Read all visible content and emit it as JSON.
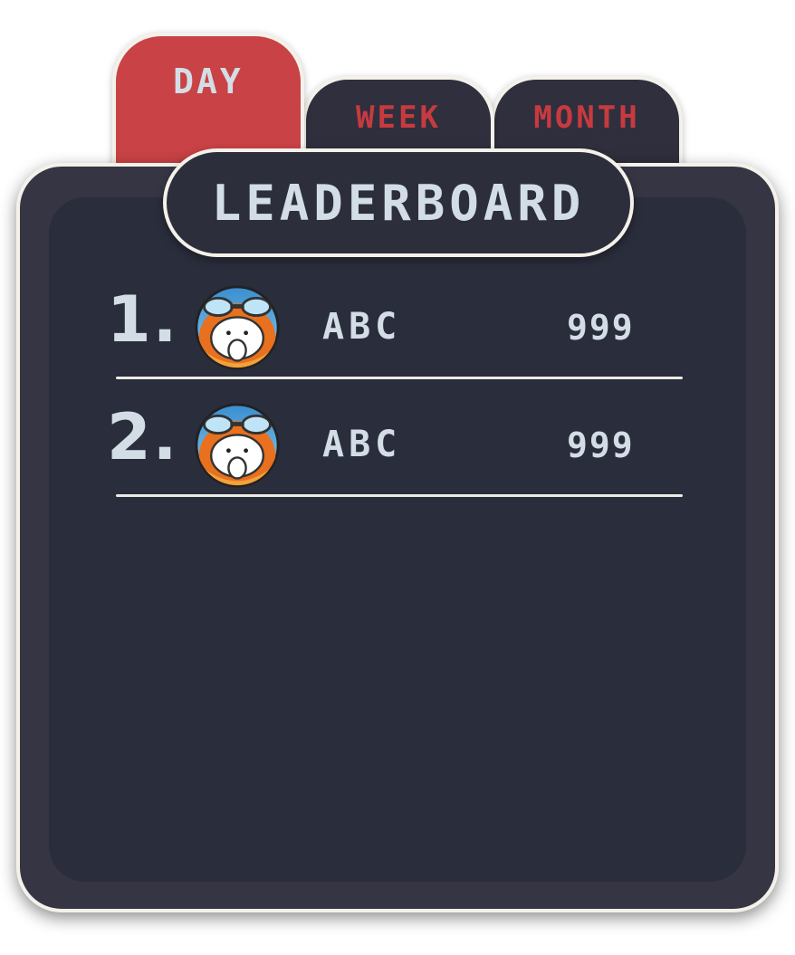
{
  "tabs": {
    "day": "DAY",
    "week": "WEEK",
    "month": "MONTH",
    "active": "day"
  },
  "title": "LEADERBOARD",
  "entries": [
    {
      "rank": "1.",
      "name": "ABC",
      "score": "999",
      "avatar": "pilot-avatar"
    },
    {
      "rank": "2.",
      "name": "ABC",
      "score": "999",
      "avatar": "pilot-avatar"
    }
  ],
  "colors": {
    "active_tab": "#c94245",
    "inactive_tab_text": "#c73a3f",
    "panel": "#353544",
    "panel_inner": "#2a2d3b",
    "text": "#d3dde6",
    "outline": "#f4f1ea"
  }
}
